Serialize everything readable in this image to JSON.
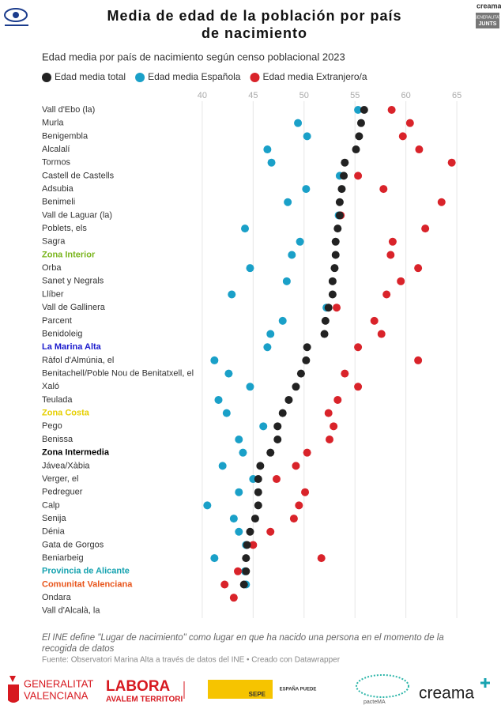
{
  "header": {
    "title_line1": "Media de edad de la población por país",
    "title_line2": "de nacimiento",
    "brand": "creama",
    "brand2_line1": "GENERALITAT",
    "brand2_line2": "JUNTS"
  },
  "chart_data": {
    "type": "dot",
    "subtitle": "Edad media por país de nacimiento según censo poblacional 2023",
    "categories": [
      "Vall d'Ebo (la)",
      "Murla",
      "Benigembla",
      "Alcalalí",
      "Tormos",
      "Castell de Castells",
      "Adsubia",
      "Benimeli",
      "Vall de Laguar (la)",
      "Poblets, els",
      "Sagra",
      "Zona Interior",
      "Orba",
      "Sanet y Negrals",
      "Llíber",
      "Vall de Gallinera",
      "Parcent",
      "Benidoleig",
      "La Marina Alta",
      "Ràfol d'Almúnia, el",
      "Benitachell/Poble Nou de Benitatxell, el",
      "Xaló",
      "Teulada",
      "Zona Costa",
      "Pego",
      "Benissa",
      "Zona Intermedia",
      "Jávea/Xàbia",
      "Verger, el",
      "Pedreguer",
      "Calp",
      "Senija",
      "Dénia",
      "Gata de Gorgos",
      "Beniarbeig",
      "Provincia de Alicante",
      "Comunitat Valenciana",
      "Ondara",
      "Vall d'Alcalà, la"
    ],
    "label_color": "#333333",
    "category_colors": [
      "#333333",
      "#333333",
      "#333333",
      "#333333",
      "#333333",
      "#333333",
      "#333333",
      "#333333",
      "#333333",
      "#333333",
      "#333333",
      "#7ab51d",
      "#333333",
      "#333333",
      "#333333",
      "#333333",
      "#333333",
      "#333333",
      "#1a1acc",
      "#333333",
      "#333333",
      "#333333",
      "#333333",
      "#e6cf00",
      "#333333",
      "#333333",
      "#000000",
      "#333333",
      "#333333",
      "#333333",
      "#333333",
      "#333333",
      "#333333",
      "#333333",
      "#333333",
      "#17a3b0",
      "#e8541a",
      "#333333",
      "#333333"
    ],
    "series": [
      {
        "name": "Edad media total",
        "color": "#222222",
        "values": [
          55.9,
          55.6,
          55.4,
          55.1,
          54.0,
          53.9,
          53.7,
          53.5,
          53.5,
          53.3,
          53.1,
          53.1,
          53.0,
          52.8,
          52.8,
          52.4,
          52.1,
          52.0,
          50.3,
          50.2,
          49.7,
          49.2,
          48.5,
          47.9,
          47.4,
          47.4,
          46.7,
          45.7,
          45.5,
          45.5,
          45.5,
          45.2,
          44.7,
          44.4,
          44.3,
          44.3,
          44.1,
          null,
          null
        ]
      },
      {
        "name": "Edad media Española",
        "color": "#1aa0c8",
        "values": [
          55.3,
          49.4,
          50.3,
          46.4,
          46.8,
          53.5,
          50.2,
          48.4,
          53.4,
          44.2,
          49.6,
          48.8,
          44.7,
          48.3,
          42.9,
          52.2,
          47.9,
          46.7,
          46.4,
          41.2,
          42.6,
          44.7,
          41.6,
          42.4,
          46.0,
          43.6,
          44.0,
          42.0,
          45.0,
          43.6,
          40.5,
          43.1,
          43.6,
          44.3,
          41.2,
          44.2,
          44.3,
          null,
          null
        ]
      },
      {
        "name": "Edad media Extranjero/a",
        "color": "#d9232a",
        "values": [
          58.6,
          60.4,
          59.7,
          61.3,
          64.5,
          55.3,
          57.8,
          63.5,
          53.6,
          61.9,
          58.7,
          58.5,
          61.2,
          59.5,
          58.1,
          53.2,
          56.9,
          57.6,
          55.3,
          61.2,
          54.0,
          55.3,
          53.3,
          52.4,
          52.9,
          52.5,
          50.3,
          49.2,
          47.3,
          50.1,
          49.5,
          49.0,
          46.7,
          45.0,
          51.7,
          43.5,
          42.2,
          43.1,
          null
        ]
      }
    ],
    "xlim": [
      39,
      66
    ],
    "xticks": [
      40,
      45,
      50,
      55,
      60,
      65
    ],
    "grid": true,
    "note": "El INE define \"Lugar de nacimiento\" como lugar en que ha nacido una persona en el momento de la recogida de datos",
    "source": "Fuente: Observatori Marina Alta a través de datos del INE • Creado con Datawrapper"
  },
  "footer": {
    "gva_line1": "GENERALITAT",
    "gva_line2": "VALENCIANA",
    "labora_line1": "LABORA",
    "labora_line2": "AVALEM TERRITORI",
    "sepe": "SEPE",
    "espana": "ESPAÑA PUEDE",
    "pacte": "pacteMA",
    "creama": "creama"
  }
}
